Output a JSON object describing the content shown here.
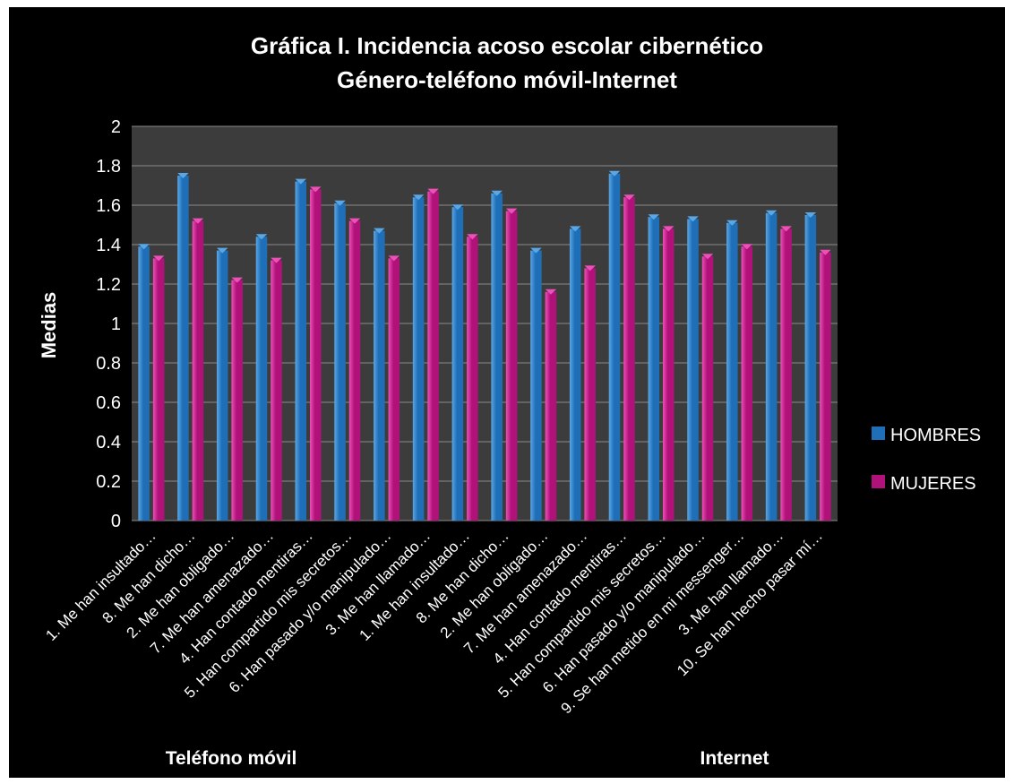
{
  "colors": {
    "hombres": "#1f6fb8",
    "hombres_light": "#5aa7e6",
    "mujeres": "#b0127a",
    "mujeres_light": "#ee4fb8",
    "plot_bg": "#3c3c3c",
    "grid": "#8a8a8a"
  },
  "chart_data": {
    "type": "bar",
    "title": "Gráfica I. Incidencia acoso escolar cibernético",
    "subtitle": "Género-teléfono móvil-Internet",
    "ylabel": "Medias",
    "xlabel": "",
    "ylim": [
      0,
      2
    ],
    "yticks": [
      "0",
      "0.2",
      "0.4",
      "0.6",
      "0.8",
      "1",
      "1.2",
      "1.4",
      "1.6",
      "1.8",
      "2"
    ],
    "grid": true,
    "legend_position": "right",
    "categories": [
      "1. Me han insultado…",
      "8. Me han dicho…",
      "2. Me han obligado…",
      "7. Me han amenazado…",
      "4. Han contado mentiras…",
      "5. Han compartido mis secretos…",
      "6. Han pasado y/o manipulado…",
      "3. Me han llamado…",
      "1. Me han insultado…",
      "8. Me han dicho…",
      "2. Me han obligado…",
      "7. Me han amenazado…",
      "4. Han contado mentiras…",
      "5. Han compartido mis secretos…",
      "6. Han pasado y/o manipulado…",
      "9. Se han metido en mi messenger…",
      "3. Me han llamado…",
      "10. Se han hecho pasar mí…"
    ],
    "groups": [
      {
        "name": "Teléfono móvil",
        "start": 0,
        "end": 7
      },
      {
        "name": "Internet",
        "start": 8,
        "end": 17
      }
    ],
    "series": [
      {
        "name": "HOMBRES",
        "values": [
          1.39,
          1.75,
          1.37,
          1.44,
          1.72,
          1.61,
          1.47,
          1.64,
          1.59,
          1.66,
          1.37,
          1.48,
          1.76,
          1.54,
          1.53,
          1.51,
          1.56,
          1.55
        ]
      },
      {
        "name": "MUJERES",
        "values": [
          1.33,
          1.52,
          1.22,
          1.32,
          1.68,
          1.52,
          1.33,
          1.67,
          1.44,
          1.57,
          1.16,
          1.28,
          1.64,
          1.48,
          1.34,
          1.39,
          1.48,
          1.36
        ]
      }
    ]
  }
}
